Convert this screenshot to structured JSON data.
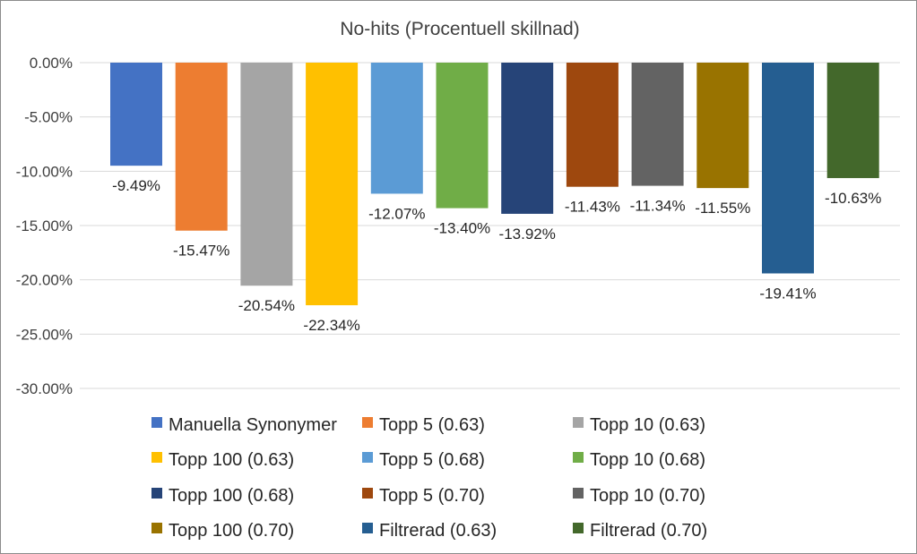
{
  "chart_data": {
    "type": "bar",
    "title": "No-hits (Procentuell skillnad)",
    "xlabel": "",
    "ylabel": "",
    "ylim": [
      -30,
      0
    ],
    "y_ticks": [
      0,
      -5,
      -10,
      -15,
      -20,
      -25,
      -30
    ],
    "y_tick_labels": [
      "0.00%",
      "-5.00%",
      "-10.00%",
      "-15.00%",
      "-20.00%",
      "-25.00%",
      "-30.00%"
    ],
    "grid": true,
    "legend_position": "bottom",
    "series": [
      {
        "name": "Manuella Synonymer",
        "value": -9.49,
        "label": "-9.49%",
        "color": "#4472c4"
      },
      {
        "name": "Topp 5 (0.63)",
        "value": -15.47,
        "label": "-15.47%",
        "color": "#ed7d31"
      },
      {
        "name": "Topp 10 (0.63)",
        "value": -20.54,
        "label": "-20.54%",
        "color": "#a5a5a5"
      },
      {
        "name": "Topp 100 (0.63)",
        "value": -22.34,
        "label": "-22.34%",
        "color": "#ffc000"
      },
      {
        "name": "Topp 5 (0.68)",
        "value": -12.07,
        "label": "-12.07%",
        "color": "#5b9bd5"
      },
      {
        "name": "Topp 10 (0.68)",
        "value": -13.4,
        "label": "-13.40%",
        "color": "#70ad47"
      },
      {
        "name": "Topp 100 (0.68)",
        "value": -13.92,
        "label": "-13.92%",
        "color": "#264478"
      },
      {
        "name": "Topp 5 (0.70)",
        "value": -11.43,
        "label": "-11.43%",
        "color": "#9e480e"
      },
      {
        "name": "Topp 10 (0.70)",
        "value": -11.34,
        "label": "-11.34%",
        "color": "#636363"
      },
      {
        "name": "Topp 100 (0.70)",
        "value": -11.55,
        "label": "-11.55%",
        "color": "#997300"
      },
      {
        "name": "Filtrerad (0.63)",
        "value": -19.41,
        "label": "-19.41%",
        "color": "#255e91"
      },
      {
        "name": "Filtrerad (0.70)",
        "value": -10.63,
        "label": "-10.63%",
        "color": "#43682b"
      }
    ]
  }
}
